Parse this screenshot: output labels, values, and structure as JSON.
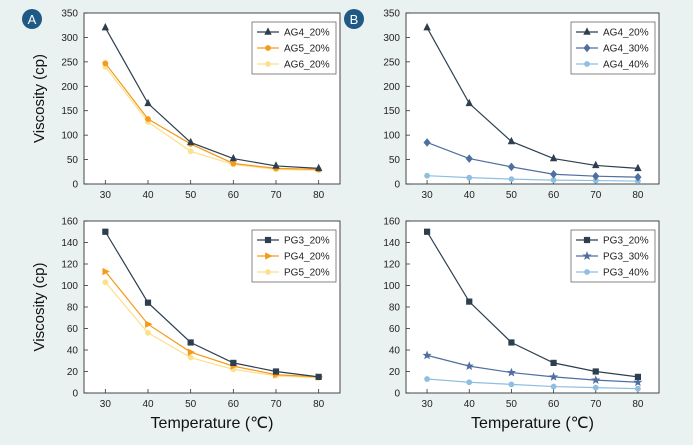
{
  "figure": {
    "shared_xlabel": "Temperature (℃)",
    "shared_ylabel": "Viscosity (cp)"
  },
  "chart_data": [
    {
      "id": "A-top",
      "panel_label": "A",
      "type": "line",
      "x": [
        30,
        40,
        50,
        60,
        70,
        80
      ],
      "xlim": [
        25,
        85
      ],
      "ylim": [
        0,
        350
      ],
      "yticks": [
        0,
        50,
        100,
        150,
        200,
        250,
        300,
        350
      ],
      "ylabel": "Viscosity (cp)",
      "xlabel": "",
      "legend": "top-right",
      "series": [
        {
          "name": "AG4_20%",
          "color": "#2d3f4f",
          "marker": "triangle",
          "values": [
            320,
            165,
            85,
            52,
            37,
            32
          ]
        },
        {
          "name": "AG5_20%",
          "color": "#f59a1b",
          "marker": "circle",
          "values": [
            247,
            133,
            82,
            42,
            32,
            30
          ]
        },
        {
          "name": "AG6_20%",
          "color": "#fde08a",
          "marker": "circle",
          "values": [
            240,
            127,
            67,
            40,
            30,
            28
          ]
        }
      ]
    },
    {
      "id": "B-top",
      "panel_label": "B",
      "type": "line",
      "x": [
        30,
        40,
        50,
        60,
        70,
        80
      ],
      "xlim": [
        25,
        85
      ],
      "ylim": [
        0,
        350
      ],
      "yticks": [
        0,
        50,
        100,
        150,
        200,
        250,
        300,
        350
      ],
      "ylabel": "",
      "xlabel": "",
      "legend": "top-right",
      "series": [
        {
          "name": "AG4_20%",
          "color": "#2d3f4f",
          "marker": "triangle",
          "values": [
            320,
            165,
            87,
            52,
            38,
            32
          ]
        },
        {
          "name": "AG4_30%",
          "color": "#4f6fa0",
          "marker": "diamond",
          "values": [
            85,
            52,
            35,
            20,
            16,
            14
          ]
        },
        {
          "name": "AG4_40%",
          "color": "#8ebfe0",
          "marker": "circle",
          "values": [
            17,
            13,
            10,
            8,
            7,
            6
          ]
        }
      ]
    },
    {
      "id": "A-bottom",
      "panel_label": "",
      "type": "line",
      "x": [
        30,
        40,
        50,
        60,
        70,
        80
      ],
      "xlim": [
        25,
        85
      ],
      "ylim": [
        0,
        160
      ],
      "yticks": [
        0,
        20,
        40,
        60,
        80,
        100,
        120,
        140,
        160
      ],
      "ylabel": "Viscosity (cp)",
      "xlabel": "Temperature (℃)",
      "legend": "top-right",
      "series": [
        {
          "name": "PG3_20%",
          "color": "#2d3f4f",
          "marker": "square",
          "values": [
            150,
            84,
            47,
            28,
            20,
            15
          ]
        },
        {
          "name": "PG4_20%",
          "color": "#f59a1b",
          "marker": "triangle-right",
          "values": [
            113,
            64,
            38,
            25,
            17,
            15
          ]
        },
        {
          "name": "PG5_20%",
          "color": "#fde08a",
          "marker": "circle",
          "values": [
            103,
            56,
            33,
            22,
            16,
            14
          ]
        }
      ]
    },
    {
      "id": "B-bottom",
      "panel_label": "",
      "type": "line",
      "x": [
        30,
        40,
        50,
        60,
        70,
        80
      ],
      "xlim": [
        25,
        85
      ],
      "ylim": [
        0,
        160
      ],
      "yticks": [
        0,
        20,
        40,
        60,
        80,
        100,
        120,
        140,
        160
      ],
      "ylabel": "",
      "xlabel": "Temperature (℃)",
      "legend": "top-right",
      "series": [
        {
          "name": "PG3_20%",
          "color": "#2d3f4f",
          "marker": "square",
          "values": [
            150,
            85,
            47,
            28,
            20,
            15
          ]
        },
        {
          "name": "PG3_30%",
          "color": "#4f6fa0",
          "marker": "star",
          "values": [
            35,
            25,
            19,
            15,
            12,
            10
          ]
        },
        {
          "name": "PG3_40%",
          "color": "#8ebfe0",
          "marker": "circle",
          "values": [
            13,
            10,
            8,
            6,
            5,
            4
          ]
        }
      ]
    }
  ]
}
